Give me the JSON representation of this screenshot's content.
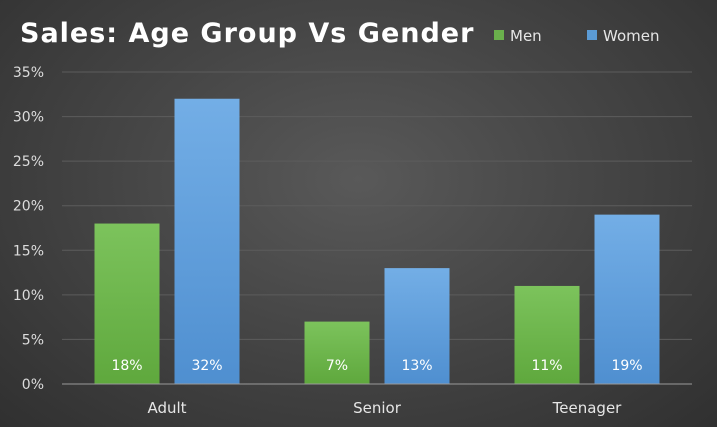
{
  "chart_data": {
    "type": "bar",
    "title": "Sales: Age Group Vs Gender",
    "xlabel": "",
    "ylabel": "",
    "categories": [
      "Adult",
      "Senior",
      "Teenager"
    ],
    "series": [
      {
        "name": "Men",
        "values": [
          18,
          7,
          11
        ],
        "labels": [
          "18%",
          "7%",
          "11%"
        ],
        "color": "#6ab04c"
      },
      {
        "name": "Women",
        "values": [
          32,
          13,
          19
        ],
        "labels": [
          "32%",
          "13%",
          "19%"
        ],
        "color": "#5b9bd5"
      }
    ],
    "ylim": [
      0,
      35
    ],
    "yticks": [
      0,
      5,
      10,
      15,
      20,
      25,
      30,
      35
    ],
    "ytick_labels": [
      "0%",
      "5%",
      "10%",
      "15%",
      "20%",
      "25%",
      "30%",
      "35%"
    ],
    "grid": true,
    "legend_position": "top-right"
  }
}
